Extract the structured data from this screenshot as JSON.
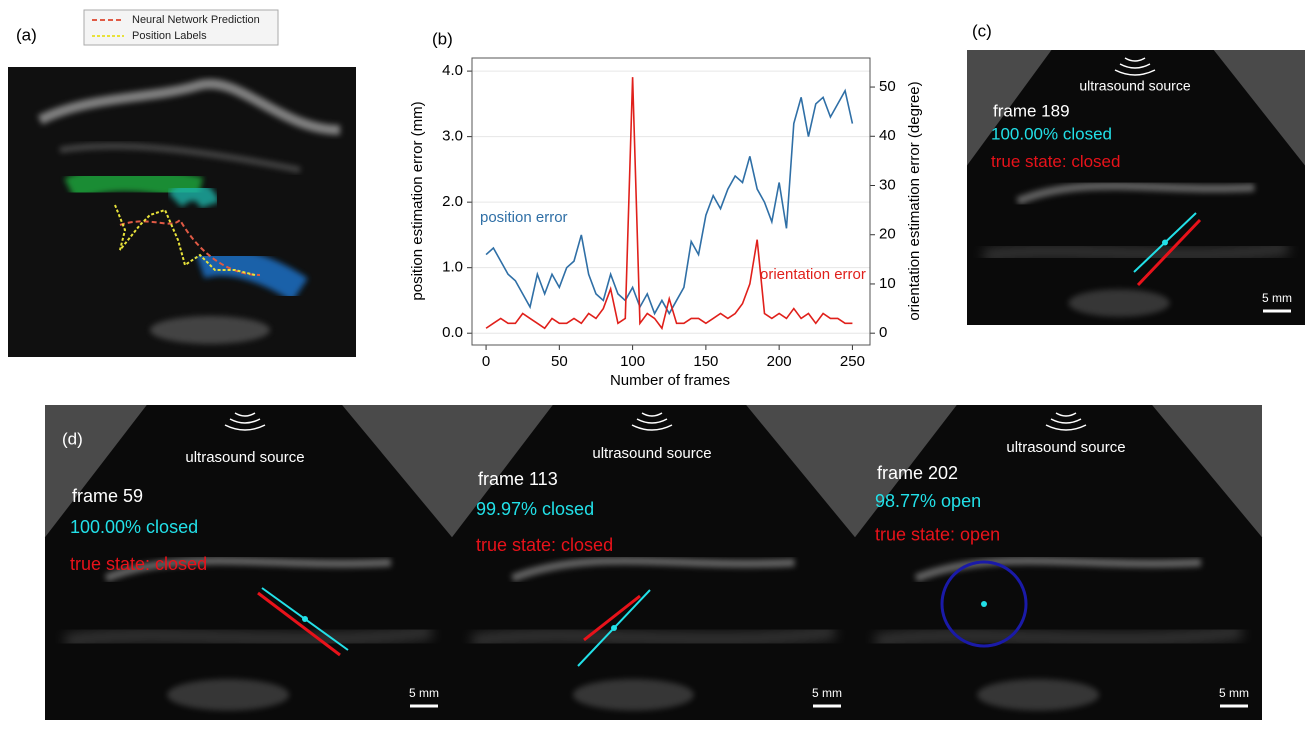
{
  "panel_a": {
    "label": "(a)",
    "legend": [
      "Neural Network Prediction",
      "Position Labels"
    ]
  },
  "chart_data": {
    "type": "line",
    "panel_label": "(b)",
    "x_label": "Number of frames",
    "y_label": "position estimation error (mm)",
    "y2_label": "orientation estimation error (degree)",
    "x": [
      0,
      5,
      10,
      15,
      20,
      25,
      30,
      35,
      40,
      45,
      50,
      55,
      60,
      65,
      70,
      75,
      80,
      85,
      90,
      95,
      100,
      105,
      110,
      115,
      120,
      125,
      130,
      135,
      140,
      145,
      150,
      155,
      160,
      165,
      170,
      175,
      180,
      185,
      190,
      195,
      200,
      205,
      210,
      215,
      220,
      225,
      230,
      235,
      240,
      245,
      250
    ],
    "series": [
      {
        "name": "position error",
        "color": "#2f6fa6",
        "values": [
          1.2,
          1.3,
          1.1,
          0.9,
          0.8,
          0.6,
          0.4,
          0.9,
          0.6,
          0.9,
          0.7,
          1.0,
          1.1,
          1.5,
          0.9,
          0.6,
          0.5,
          0.9,
          0.6,
          0.5,
          0.7,
          0.4,
          0.6,
          0.3,
          0.5,
          0.3,
          0.5,
          0.7,
          1.4,
          1.2,
          1.8,
          2.1,
          1.9,
          2.2,
          2.4,
          2.3,
          2.7,
          2.2,
          2.0,
          1.7,
          2.3,
          1.6,
          3.2,
          3.6,
          3.0,
          3.5,
          3.6,
          3.3,
          3.5,
          3.7,
          3.2
        ]
      },
      {
        "name": "orientation error",
        "color": "#e0201b",
        "axis": "y2",
        "values": [
          1,
          2,
          3,
          2,
          2,
          4,
          3,
          2,
          1,
          3,
          2,
          2,
          3,
          2,
          4,
          3,
          5,
          9,
          2,
          3,
          52,
          2,
          4,
          3,
          1,
          7,
          2,
          2,
          3,
          3,
          2,
          3,
          4,
          3,
          4,
          6,
          10,
          19,
          4,
          3,
          4,
          3,
          5,
          3,
          4,
          2,
          4,
          3,
          3,
          2,
          2
        ]
      }
    ],
    "xlim": [
      -9.6,
      262
    ],
    "xticks": [
      0,
      50,
      100,
      150,
      200,
      250
    ],
    "ylim": [
      -0.18,
      4.2
    ],
    "yticks": [
      {
        "value": 0,
        "label": "0.0"
      },
      {
        "value": 1,
        "label": "1.0"
      },
      {
        "value": 2,
        "label": "2.0"
      },
      {
        "value": 3,
        "label": "3.0"
      },
      {
        "value": 4,
        "label": "4.0"
      }
    ],
    "y2lim": [
      -2.4,
      55.9
    ],
    "y2ticks": [
      0,
      10,
      20,
      30,
      40,
      50
    ],
    "grid": true
  },
  "panel_c": {
    "label": "(c)",
    "frame": {
      "source": "ultrasound source",
      "frame": "frame 189",
      "prediction": "100.00% closed",
      "truth": "true state: closed",
      "scale": "5 mm"
    }
  },
  "panel_d": {
    "label": "(d)",
    "frames": [
      {
        "source": "ultrasound source",
        "frame": "frame 59",
        "prediction": "100.00% closed",
        "truth": "true state: closed",
        "scale": "5 mm"
      },
      {
        "source": "ultrasound source",
        "frame": "frame 113",
        "prediction": "99.97% closed",
        "truth": "true state: closed",
        "scale": "5 mm"
      },
      {
        "source": "ultrasound source",
        "frame": "frame 202",
        "prediction": "98.77% open",
        "truth": "true state: open",
        "scale": "5 mm"
      }
    ]
  }
}
